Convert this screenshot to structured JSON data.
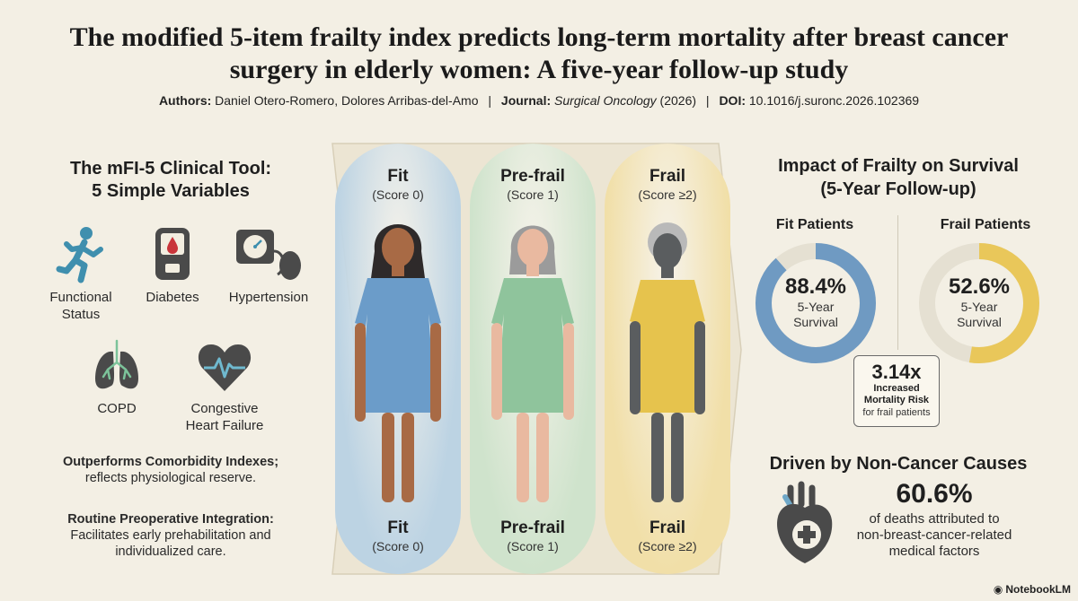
{
  "header": {
    "title": "The modified 5-item frailty index predicts long-term mortality after breast cancer surgery in elderly women: A five-year follow-up study",
    "authors_label": "Authors:",
    "authors": "Daniel Otero-Romero, Dolores Arribas-del-Amo",
    "journal_label": "Journal:",
    "journal": "Surgical Oncology",
    "year": "(2026)",
    "doi_label": "DOI:",
    "doi": "10.1016/j.suronc.2026.102369",
    "separator": "|"
  },
  "tool": {
    "heading_line1": "The mFI-5 Clinical Tool:",
    "heading_line2": "5 Simple Variables",
    "variables": [
      {
        "label_line1": "Functional",
        "label_line2": "Status",
        "icon": "running-person-icon"
      },
      {
        "label_line1": "Diabetes",
        "label_line2": "",
        "icon": "glucometer-icon"
      },
      {
        "label_line1": "Hypertension",
        "label_line2": "",
        "icon": "blood-pressure-cuff-icon"
      },
      {
        "label_line1": "COPD",
        "label_line2": "",
        "icon": "lungs-icon"
      },
      {
        "label_line1": "Congestive",
        "label_line2": "Heart Failure",
        "icon": "heart-pulse-icon"
      }
    ],
    "note1_bold": "Outperforms Comorbidity Indexes;",
    "note1_text": "reflects physiological reserve.",
    "note2_bold": "Routine Preoperative Integration:",
    "note2_text_line1": "Facilitates early prehabilitation and",
    "note2_text_line2": "individualized care."
  },
  "categories": [
    {
      "name": "Fit",
      "score": "(Score 0)",
      "color": "#bcd3e3",
      "dress": "#6b9cc9"
    },
    {
      "name": "Pre-frail",
      "score": "(Score 1)",
      "color": "#cfe3cc",
      "dress": "#8fc49c"
    },
    {
      "name": "Frail",
      "score": "(Score ≥2)",
      "color": "#f1dfa8",
      "dress": "#e6c34d"
    }
  ],
  "survival": {
    "heading_line1": "Impact of Frailty on Survival",
    "heading_line2": "(5-Year Follow-up)",
    "fit_title": "Fit Patients",
    "fit_pct": "88.4%",
    "fit_value": 88.4,
    "fit_color": "#6f9ac2",
    "frail_title": "Frail Patients",
    "frail_pct": "52.6%",
    "frail_value": 52.6,
    "frail_color": "#e9c75a",
    "sub_line1": "5-Year",
    "sub_line2": "Survival",
    "risk_value": "3.14x",
    "risk_line1": "Increased",
    "risk_line2": "Mortality Risk",
    "risk_line3": "for frail patients"
  },
  "causes": {
    "heading": "Driven by Non-Cancer Causes",
    "pct": "60.6%",
    "desc_line1": "of deaths attributed to",
    "desc_line2": "non-breast-cancer-related",
    "desc_line3": "medical factors"
  },
  "brand": "NotebookLM"
}
